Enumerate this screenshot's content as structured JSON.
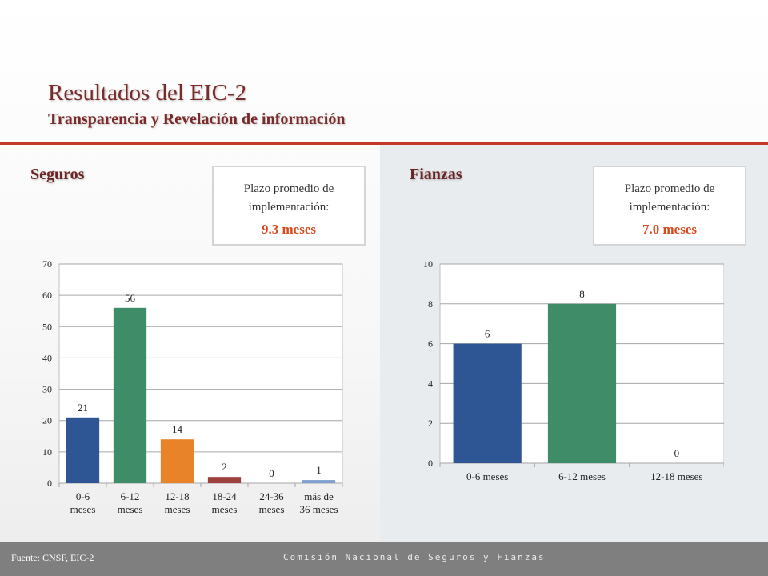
{
  "header": {
    "title": "Resultados del EIC-2",
    "subtitle": "Transparencia y Revelación de información"
  },
  "sections": {
    "left": "Seguros",
    "right": "Fianzas"
  },
  "info_boxes": {
    "seguros": {
      "label": "Plazo promedio de implementación:",
      "value": "9.3 meses"
    },
    "fianzas": {
      "label": "Plazo promedio de implementación:",
      "value": "7.0 meses"
    }
  },
  "footer": {
    "source": "Fuente: CNSF, EIC-2",
    "org": "Comisión Nacional de Seguros y Fianzas"
  },
  "colors": {
    "blue": "#2e5594",
    "green": "#3e8c68",
    "orange": "#e8832a",
    "red": "#9e4040",
    "lightblue": "#7f9fd0",
    "accent": "#d94a1c"
  },
  "chart_data": [
    {
      "type": "bar",
      "categories": [
        [
          "0-6",
          "meses"
        ],
        [
          "6-12",
          "meses"
        ],
        [
          "12-18",
          "meses"
        ],
        [
          "18-24",
          "meses"
        ],
        [
          "24-36",
          "meses"
        ],
        [
          "más de",
          "36 meses"
        ]
      ],
      "values": [
        21,
        56,
        14,
        2,
        0,
        1
      ],
      "colors": [
        "#2e5594",
        "#3e8c68",
        "#e8832a",
        "#9e4040",
        "#7f9fd0",
        "#7f9fd0"
      ],
      "ylim": [
        0,
        70
      ],
      "yticks": [
        0,
        10,
        20,
        30,
        40,
        50,
        60,
        70
      ],
      "grid": true,
      "title": "",
      "xlabel": "",
      "ylabel": ""
    },
    {
      "type": "bar",
      "categories": [
        [
          "0-6 meses"
        ],
        [
          "6-12 meses"
        ],
        [
          "12-18 meses"
        ]
      ],
      "values": [
        6,
        8,
        0
      ],
      "colors": [
        "#2e5594",
        "#3e8c68",
        "#3e8c68"
      ],
      "ylim": [
        0,
        10
      ],
      "yticks": [
        0,
        2,
        4,
        6,
        8,
        10
      ],
      "grid": true,
      "title": "",
      "xlabel": "",
      "ylabel": ""
    }
  ]
}
